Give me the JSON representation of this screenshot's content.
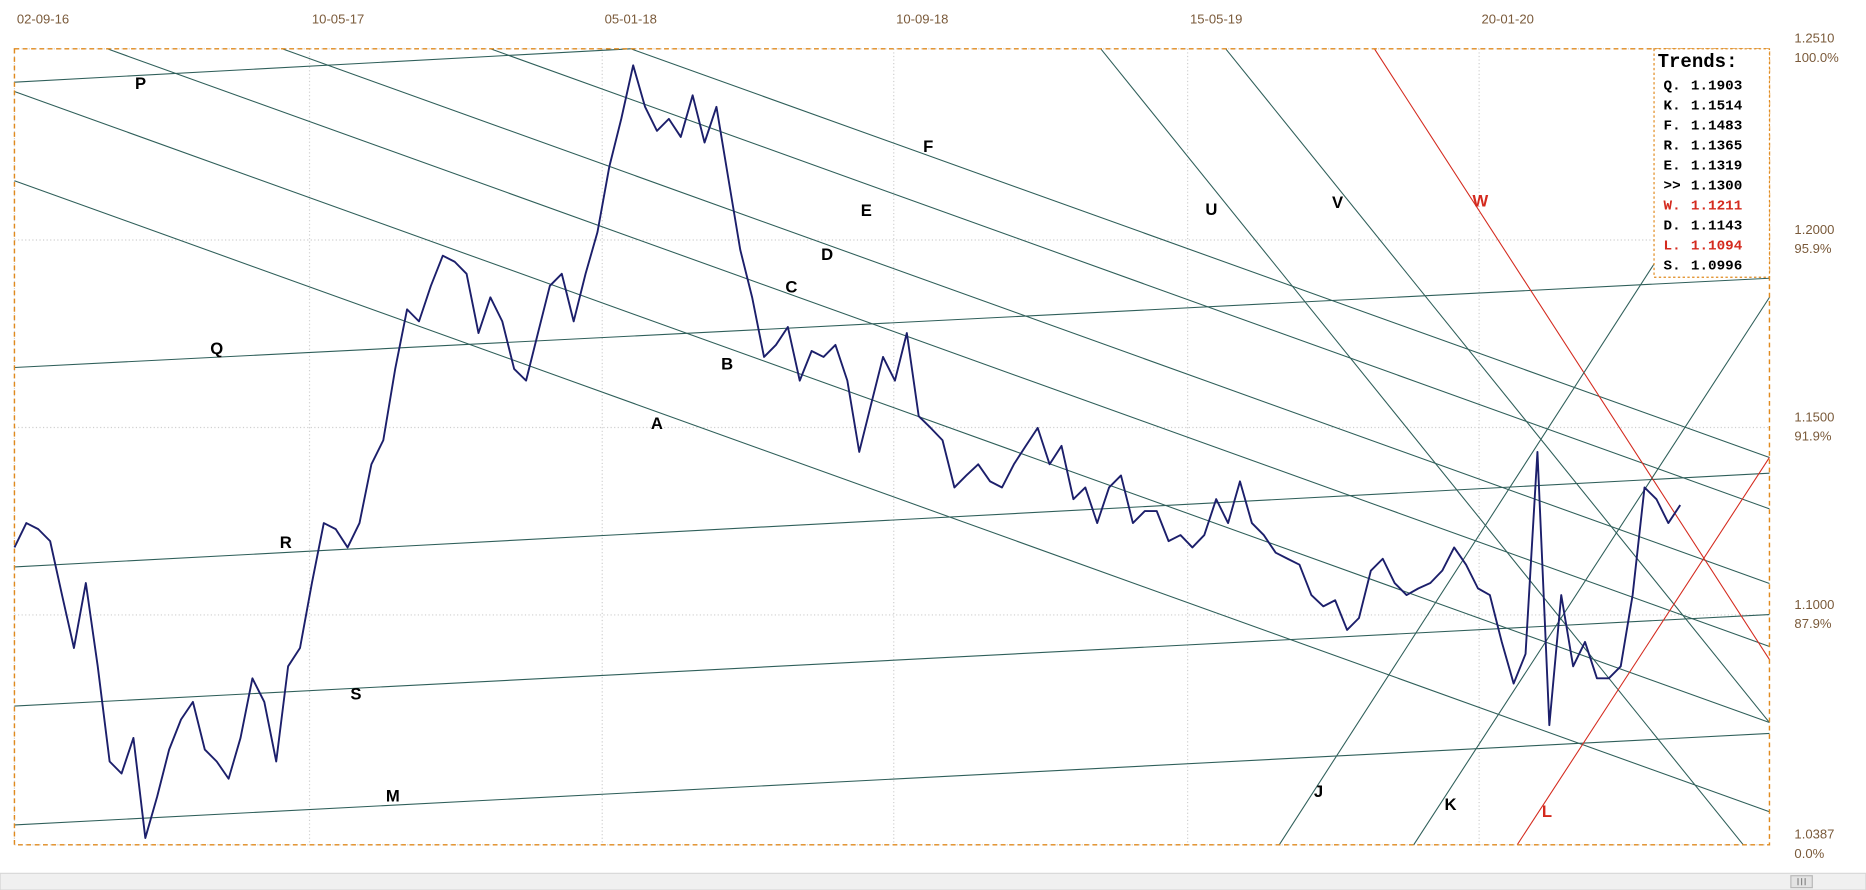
{
  "chart_data": {
    "type": "line",
    "color": "#1c1f6b",
    "grid": true,
    "xlim": [
      0,
      147.5
    ],
    "xticks": [
      {
        "value": 0,
        "label": "02-09-16"
      },
      {
        "value": 24.8,
        "label": "10-05-17"
      },
      {
        "value": 49.4,
        "label": "05-01-18"
      },
      {
        "value": 73.9,
        "label": "10-09-18"
      },
      {
        "value": 98.6,
        "label": "15-05-19"
      },
      {
        "value": 123.1,
        "label": "20-01-20"
      }
    ],
    "ylim": [
      1.0387,
      1.251
    ],
    "yticks": [
      {
        "value": 1.251,
        "label": "1.2510"
      },
      {
        "value": 1.2,
        "label": "1.2000"
      },
      {
        "value": 1.15,
        "label": "1.1500"
      },
      {
        "value": 1.1,
        "label": "1.1000"
      },
      1.0387
    ],
    "ytick_percent_labels": [
      "100.0%",
      "95.9%",
      "91.9%",
      "87.9%",
      "0.0%"
    ],
    "values": [
      1.118,
      1.1245,
      1.1229,
      1.1197,
      1.1053,
      1.0912,
      1.1085,
      1.0863,
      1.0609,
      1.0577,
      1.0672,
      1.0405,
      1.0516,
      1.0641,
      1.0721,
      1.0768,
      1.0641,
      1.0609,
      1.0563,
      1.0672,
      1.0831,
      1.0768,
      1.0609,
      1.0863,
      1.0912,
      1.1085,
      1.1245,
      1.1229,
      1.118,
      1.1245,
      1.1402,
      1.1466,
      1.1656,
      1.1815,
      1.1783,
      1.1878,
      1.1958,
      1.1942,
      1.191,
      1.1752,
      1.1847,
      1.1783,
      1.1656,
      1.1625,
      1.1752,
      1.1878,
      1.191,
      1.1783,
      1.191,
      1.2021,
      1.2196,
      1.2323,
      1.2466,
      1.2355,
      1.2291,
      1.2323,
      1.2275,
      1.2386,
      1.226,
      1.2355,
      1.2164,
      1.1974,
      1.1847,
      1.1688,
      1.172,
      1.1768,
      1.1625,
      1.1704,
      1.1688,
      1.172,
      1.1625,
      1.1435,
      1.1562,
      1.1688,
      1.1625,
      1.1752,
      1.153,
      1.1499,
      1.1466,
      1.134,
      1.1372,
      1.1402,
      1.1356,
      1.134,
      1.1402,
      1.1451,
      1.1499,
      1.1402,
      1.1451,
      1.1309,
      1.134,
      1.1245,
      1.134,
      1.1372,
      1.1245,
      1.1277,
      1.1277,
      1.1197,
      1.1213,
      1.118,
      1.1213,
      1.1309,
      1.1245,
      1.1356,
      1.1245,
      1.1213,
      1.1166,
      1.115,
      1.1134,
      1.1053,
      1.1023,
      1.1039,
      1.096,
      1.0992,
      1.1118,
      1.115,
      1.1085,
      1.1053,
      1.1071,
      1.1085,
      1.1118,
      1.118,
      1.1134,
      1.1071,
      1.1053,
      1.0928,
      1.0817,
      1.0896,
      1.1435,
      1.0706,
      1.1053,
      1.0863,
      1.0928,
      1.0831,
      1.0831,
      1.0863,
      1.1053,
      1.134,
      1.1309,
      1.1245,
      1.1293
    ],
    "trendlines": [
      {
        "label": "P",
        "color": "#2f5f5a",
        "x": [
          0,
          51.8
        ],
        "y": [
          1.2421,
          1.251
        ]
      },
      {
        "label": "Q",
        "color": "#2f5f5a",
        "x": [
          0,
          147.5
        ],
        "y": [
          1.166,
          1.1898
        ]
      },
      {
        "label": "R",
        "color": "#2f5f5a",
        "x": [
          0,
          147.5
        ],
        "y": [
          1.1128,
          1.1378
        ]
      },
      {
        "label": "S",
        "color": "#2f5f5a",
        "x": [
          0,
          147.5
        ],
        "y": [
          1.0757,
          1.1001
        ]
      },
      {
        "label": "M",
        "color": "#2f5f5a",
        "x": [
          0,
          147.5
        ],
        "y": [
          1.044,
          1.0684
        ]
      },
      {
        "label": "A",
        "color": "#2f5f5a",
        "x": [
          0,
          147.5
        ],
        "y": [
          1.2158,
          1.0475
        ]
      },
      {
        "label": "B",
        "color": "#2f5f5a",
        "x": [
          0,
          147.5
        ],
        "y": [
          1.2396,
          1.0713
        ]
      },
      {
        "label": "C",
        "color": "#2f5f5a",
        "x": [
          7.8,
          147.5
        ],
        "y": [
          1.251,
          1.0916
        ]
      },
      {
        "label": "D",
        "color": "#2f5f5a",
        "x": [
          22.5,
          147.5
        ],
        "y": [
          1.251,
          1.1084
        ]
      },
      {
        "label": "E",
        "color": "#2f5f5a",
        "x": [
          40,
          147.5
        ],
        "y": [
          1.251,
          1.1283
        ]
      },
      {
        "label": "F",
        "color": "#2f5f5a",
        "x": [
          51.8,
          147.5
        ],
        "y": [
          1.251,
          1.142
        ]
      },
      {
        "label": "U",
        "color": "#2f5f5a",
        "x": [
          91.3,
          145.3
        ],
        "y": [
          1.251,
          1.0387
        ]
      },
      {
        "label": "V",
        "color": "#2f5f5a",
        "x": [
          101.8,
          147.5
        ],
        "y": [
          1.251,
          1.0713
        ]
      },
      {
        "label": "W",
        "color": "#d42a1e",
        "x": [
          114.3,
          147.5
        ],
        "y": [
          1.251,
          1.0881
        ]
      },
      {
        "label": "J",
        "color": "#2f5f5a",
        "x": [
          106.3,
          137.8
        ],
        "y": [
          1.0387,
          1.1936
        ]
      },
      {
        "label": "K",
        "color": "#2f5f5a",
        "x": [
          117.6,
          147.5
        ],
        "y": [
          1.0387,
          1.1847
        ]
      },
      {
        "label": "L",
        "color": "#d42a1e",
        "x": [
          126.3,
          147.5
        ],
        "y": [
          1.0387,
          1.142
        ]
      }
    ],
    "trends_box": {
      "title": "Trends:",
      "rows": [
        {
          "label": "Q.",
          "value": "1.1903",
          "color": "#000000"
        },
        {
          "label": "K.",
          "value": "1.1514",
          "color": "#000000"
        },
        {
          "label": "F.",
          "value": "1.1483",
          "color": "#000000"
        },
        {
          "label": "R.",
          "value": "1.1365",
          "color": "#000000"
        },
        {
          "label": "E.",
          "value": "1.1319",
          "color": "#000000"
        },
        {
          "label": ">>",
          "value": "1.1300",
          "color": "#000000"
        },
        {
          "label": "W.",
          "value": "1.1211",
          "color": "#d42a1e"
        },
        {
          "label": "D.",
          "value": "1.1143",
          "color": "#000000"
        },
        {
          "label": "L.",
          "value": "1.1094",
          "color": "#d42a1e"
        },
        {
          "label": "S.",
          "value": "1.0996",
          "color": "#000000"
        }
      ]
    }
  }
}
